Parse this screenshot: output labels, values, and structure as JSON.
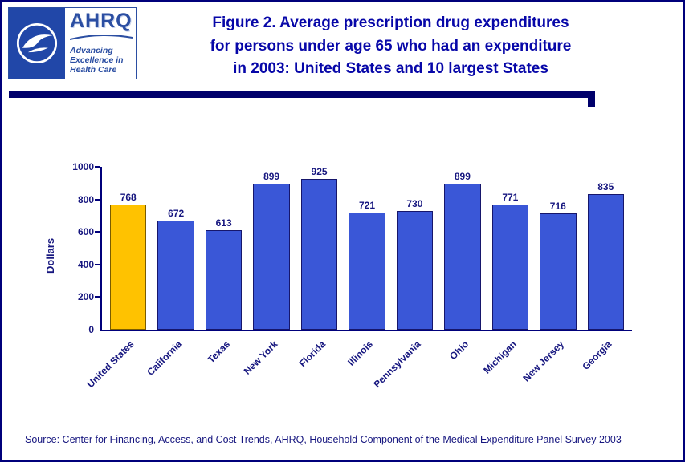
{
  "colors": {
    "frame_navy": "#00007B",
    "title_blue": "#0707A8",
    "chart_text": "#16167F",
    "bar_blue": "#3A57D7",
    "bar_border": "#16166B",
    "highlight_gold": "#FFC200",
    "hhs_blue": "#2147A8",
    "ahrq_blue": "#2B4EA2"
  },
  "header": {
    "title_lines": [
      "Figure 2. Average prescription drug expenditures",
      "for persons under age 65 who had an expenditure",
      "in 2003: United States and 10 largest States"
    ]
  },
  "logos": {
    "ahrq_wordmark": "AHRQ",
    "tagline_lines": [
      "Advancing",
      "Excellence in",
      "Health Care"
    ]
  },
  "chart_data": {
    "type": "bar",
    "title": "Average prescription drug expenditures for persons under age 65 who had an expenditure in 2003: United States and 10 largest States",
    "categories": [
      "United States",
      "California",
      "Texas",
      "New York",
      "Florida",
      "Illinois",
      "Pennsylvania",
      "Ohio",
      "Michigan",
      "New Jersey",
      "Georgia"
    ],
    "values": [
      768,
      672,
      613,
      899,
      925,
      721,
      730,
      899,
      771,
      716,
      835
    ],
    "xlabel": "",
    "ylabel": "Dollars",
    "ylim": [
      0,
      1000
    ],
    "yticks": [
      0,
      200,
      400,
      600,
      800,
      1000
    ],
    "grid": false,
    "legend": false,
    "value_labels": true,
    "bar_color": "#3A57D7",
    "bar_border_color": "#16166B",
    "highlight_index": 0,
    "highlight_color": "#FFC200",
    "highlight_border_color": "#7A5C00"
  },
  "footer": {
    "source": "Source: Center for Financing, Access, and Cost Trends, AHRQ, Household Component of the Medical Expenditure Panel Survey 2003"
  }
}
